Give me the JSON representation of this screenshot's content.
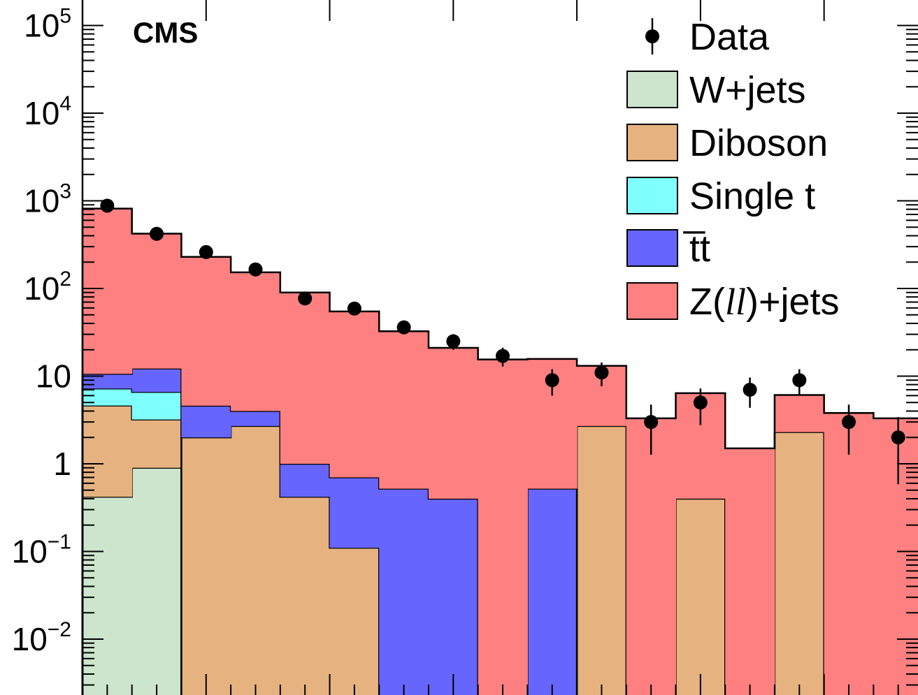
{
  "chart_data": {
    "type": "bar",
    "stacked": true,
    "y_scale": "log",
    "ylim": [
      0.0025,
      200000
    ],
    "n_bins": 17,
    "experiment_label": "CMS",
    "y_tick_labels": [
      {
        "value": 0.01,
        "base": "10",
        "exp": "−2"
      },
      {
        "value": 0.1,
        "base": "10",
        "exp": "−1"
      },
      {
        "value": 1,
        "base": "1",
        "exp": ""
      },
      {
        "value": 10,
        "base": "10",
        "exp": ""
      },
      {
        "value": 100,
        "base": "10",
        "exp": "2"
      },
      {
        "value": 1000,
        "base": "10",
        "exp": "3"
      },
      {
        "value": 10000,
        "base": "10",
        "exp": "4"
      },
      {
        "value": 100000,
        "base": "10",
        "exp": "5"
      }
    ],
    "stack_order": [
      "wjets",
      "diboson",
      "single_t",
      "ttbar",
      "zjets"
    ],
    "series": [
      {
        "id": "wjets",
        "name": "W+jets",
        "color": "#cce5cc",
        "values": [
          0.42,
          0.9,
          0,
          0,
          0,
          0,
          0,
          0,
          0,
          0,
          0,
          0,
          0,
          0,
          0,
          0,
          0
        ]
      },
      {
        "id": "diboson",
        "name": "Diboson",
        "color": "#e6b380",
        "values": [
          4.2,
          2.3,
          2.0,
          2.7,
          0.42,
          0.11,
          0,
          0,
          0,
          0,
          2.7,
          0,
          0.4,
          0,
          2.3,
          0,
          0
        ]
      },
      {
        "id": "single_t",
        "name": "Single t",
        "color": "#80ffff",
        "values": [
          2.6,
          3.4,
          0,
          0,
          0,
          0,
          0,
          0,
          0,
          0,
          0,
          0,
          0,
          0,
          0,
          0,
          0
        ]
      },
      {
        "id": "ttbar",
        "name": "t̅t",
        "color": "#6666ff",
        "values": [
          3.4,
          5.6,
          2.6,
          1.3,
          0.58,
          0.59,
          0.52,
          0.4,
          0,
          0.52,
          0,
          0,
          0,
          0,
          0,
          0,
          0
        ]
      },
      {
        "id": "zjets",
        "name": "Z(ll)+jets",
        "color": "#ff8080",
        "values": [
          805,
          410,
          225,
          149,
          89,
          54,
          32,
          20.6,
          15.5,
          15.2,
          10.4,
          3.3,
          6.0,
          1.5,
          3.8,
          3.8,
          3.3
        ]
      }
    ],
    "data_points": {
      "name": "Data",
      "values": [
        880,
        420,
        260,
        165,
        77,
        59,
        36,
        25,
        17,
        9,
        11,
        3,
        5,
        7,
        9,
        3,
        2
      ]
    },
    "legend": {
      "placement": "top-right",
      "entries": [
        {
          "label": "Data",
          "marker": "point"
        },
        {
          "label": "W+jets",
          "series": "wjets"
        },
        {
          "label": "Diboson",
          "series": "diboson"
        },
        {
          "label": "Single t",
          "series": "single_t"
        },
        {
          "label": "t̅t",
          "series": "ttbar"
        },
        {
          "label_parts": [
            "Z(",
            "ll",
            ")+jets"
          ],
          "series": "zjets"
        }
      ]
    }
  }
}
